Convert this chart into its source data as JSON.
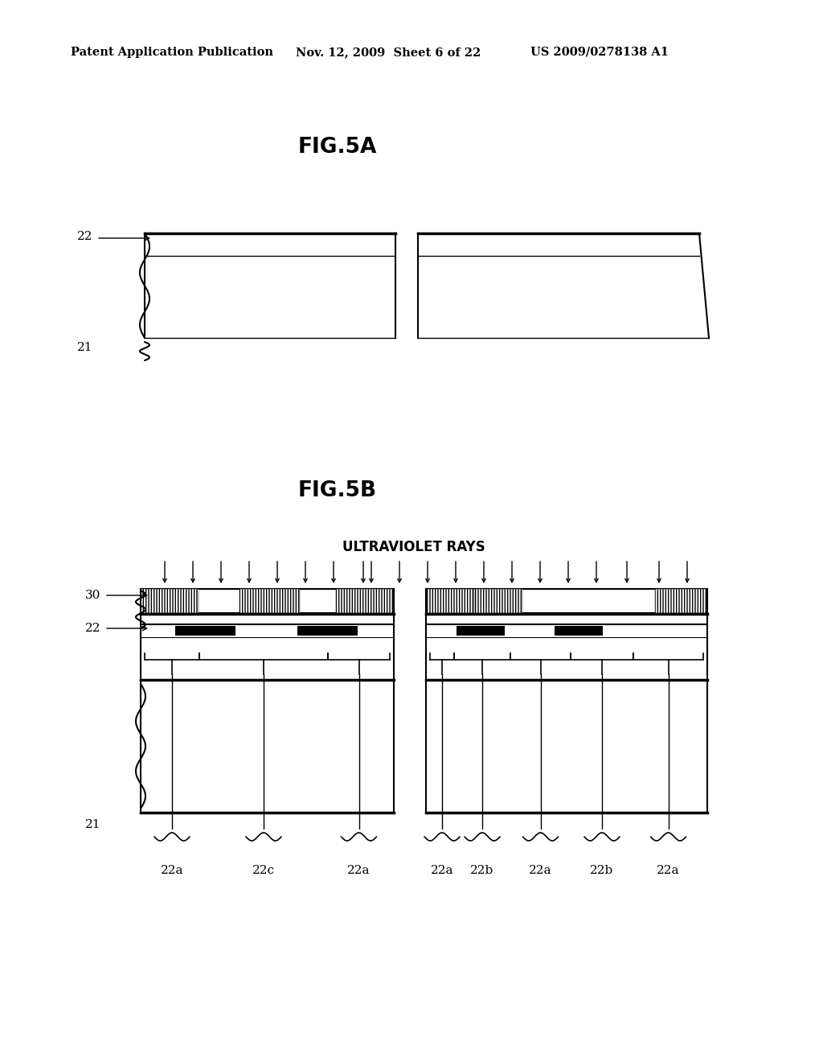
{
  "background_color": "#ffffff",
  "header_text": "Patent Application Publication",
  "header_date": "Nov. 12, 2009  Sheet 6 of 22",
  "header_patent": "US 2009/0278138 A1",
  "fig5a_title": "FIG.5A",
  "fig5b_title": "FIG.5B",
  "uv_label": "ULTRAVIOLET RAYS",
  "label_21": "21",
  "label_22": "22",
  "label_30": "30",
  "lp_labels": [
    "22a",
    "22c",
    "22a"
  ],
  "rp_labels": [
    "22a",
    "22b",
    "22a",
    "22b",
    "22a"
  ]
}
